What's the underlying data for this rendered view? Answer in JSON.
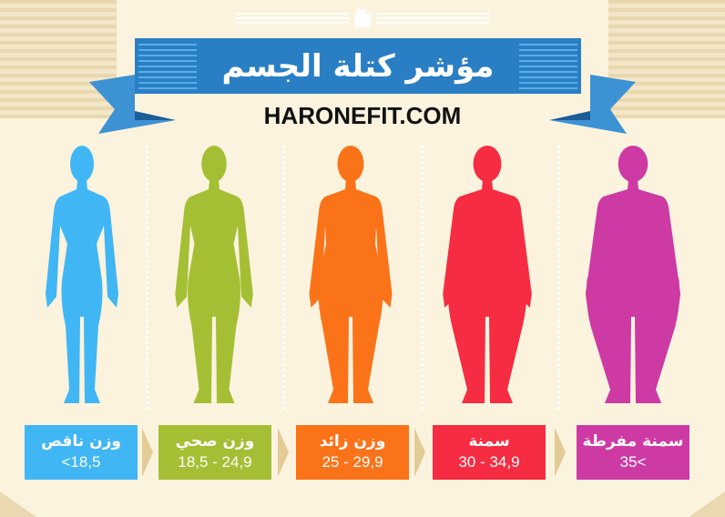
{
  "header": {
    "title": "مؤشر كتلة الجسم",
    "website": "HARONEFIT.COM",
    "icon": "weight-icon",
    "banner_color": "#2a7fc4"
  },
  "categories": [
    {
      "label": "وزن ناقص",
      "range": "<18,5",
      "color": "#41b6f4"
    },
    {
      "label": "وزن صحي",
      "range": "18,5 - 24,9",
      "color": "#a5bf35"
    },
    {
      "label": "وزن زائد",
      "range": "25 - 29,9",
      "color": "#fb7319"
    },
    {
      "label": "سمنة",
      "range": "30 - 34,9",
      "color": "#f52c42"
    },
    {
      "label": "سمنة مفرطة",
      "range": "35<",
      "color": "#cd3aa4"
    }
  ]
}
